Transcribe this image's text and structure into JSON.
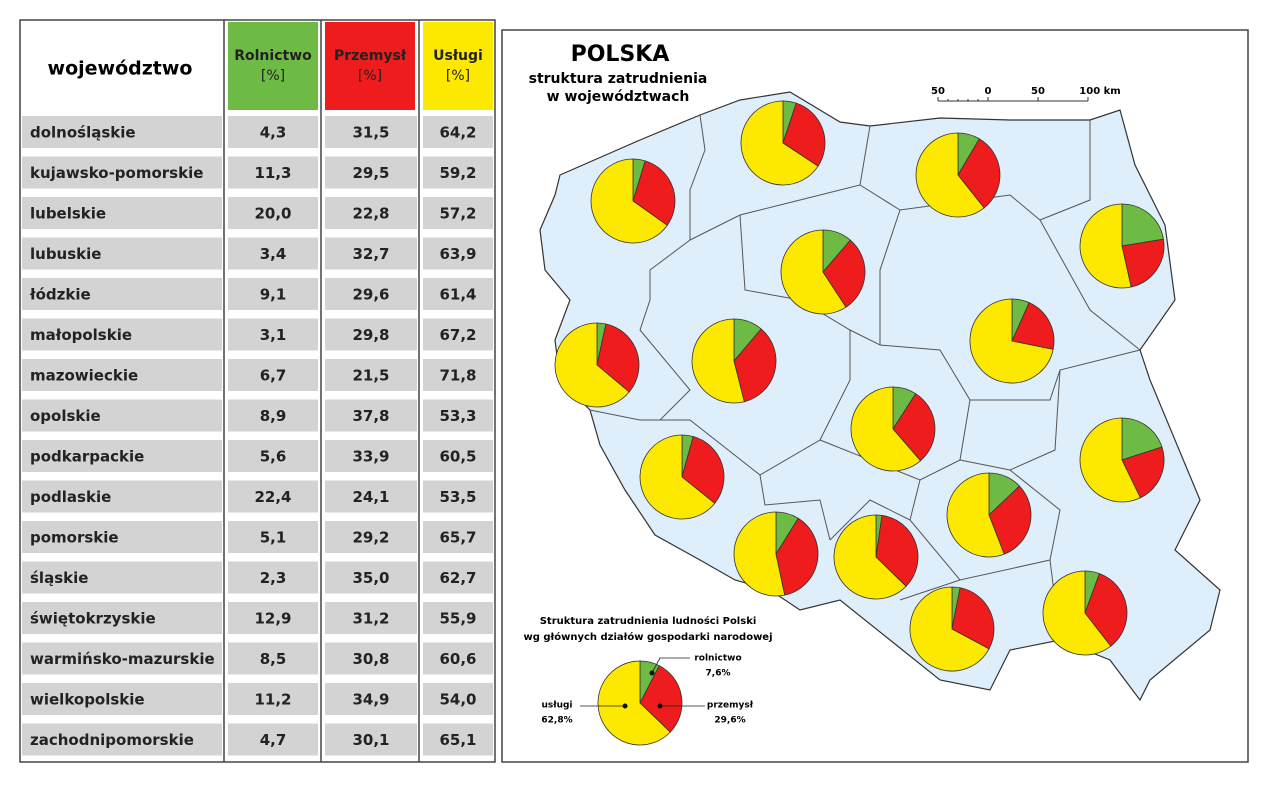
{
  "table": {
    "header": {
      "name": "województwo",
      "columns": [
        {
          "name": "Rolnictwo",
          "unit": "[%]"
        },
        {
          "name": "Przemysł",
          "unit": "[%]"
        },
        {
          "name": "Usługi",
          "unit": "[%]"
        }
      ]
    },
    "rows": [
      [
        "dolnośląskie",
        "4,3",
        "31,5",
        "64,2"
      ],
      [
        "kujawsko-pomorskie",
        "11,3",
        "29,5",
        "59,2"
      ],
      [
        "lubelskie",
        "20,0",
        "22,8",
        "57,2"
      ],
      [
        "lubuskie",
        "3,4",
        "32,7",
        "63,9"
      ],
      [
        "łódzkie",
        "9,1",
        "29,6",
        "61,4"
      ],
      [
        "małopolskie",
        "3,1",
        "29,8",
        "67,2"
      ],
      [
        "mazowieckie",
        "6,7",
        "21,5",
        "71,8"
      ],
      [
        "opolskie",
        "8,9",
        "37,8",
        "53,3"
      ],
      [
        "podkarpackie",
        "5,6",
        "33,9",
        "60,5"
      ],
      [
        "podlaskie",
        "22,4",
        "24,1",
        "53,5"
      ],
      [
        "pomorskie",
        "5,1",
        "29,2",
        "65,7"
      ],
      [
        "śląskie",
        "2,3",
        "35,0",
        "62,7"
      ],
      [
        "świętokrzyskie",
        "12,9",
        "31,2",
        "55,9"
      ],
      [
        "warmińsko-mazurskie",
        "8,5",
        "30,8",
        "60,6"
      ],
      [
        "wielkopolskie",
        "11,2",
        "34,9",
        "54,0"
      ],
      [
        "zachodnipomorskie",
        "4,7",
        "30,1",
        "65,1"
      ]
    ]
  },
  "map": {
    "title": "POLSKA",
    "subtitle": [
      "struktura zatrudnienia",
      "w województwach"
    ],
    "scale": [
      "50",
      "0",
      "50",
      "100 km"
    ],
    "legend": {
      "title": [
        "Struktura zatrudnienia ludności Polski",
        "wg głównych działów gospodarki narodowej"
      ],
      "items": [
        {
          "name": "rolnictwo",
          "value": 7.6,
          "label": "7,6%"
        },
        {
          "name": "przemysł",
          "value": 29.6,
          "label": "29,6%"
        },
        {
          "name": "usługi",
          "value": 62.8,
          "label": "62,8%"
        }
      ]
    }
  }
}
